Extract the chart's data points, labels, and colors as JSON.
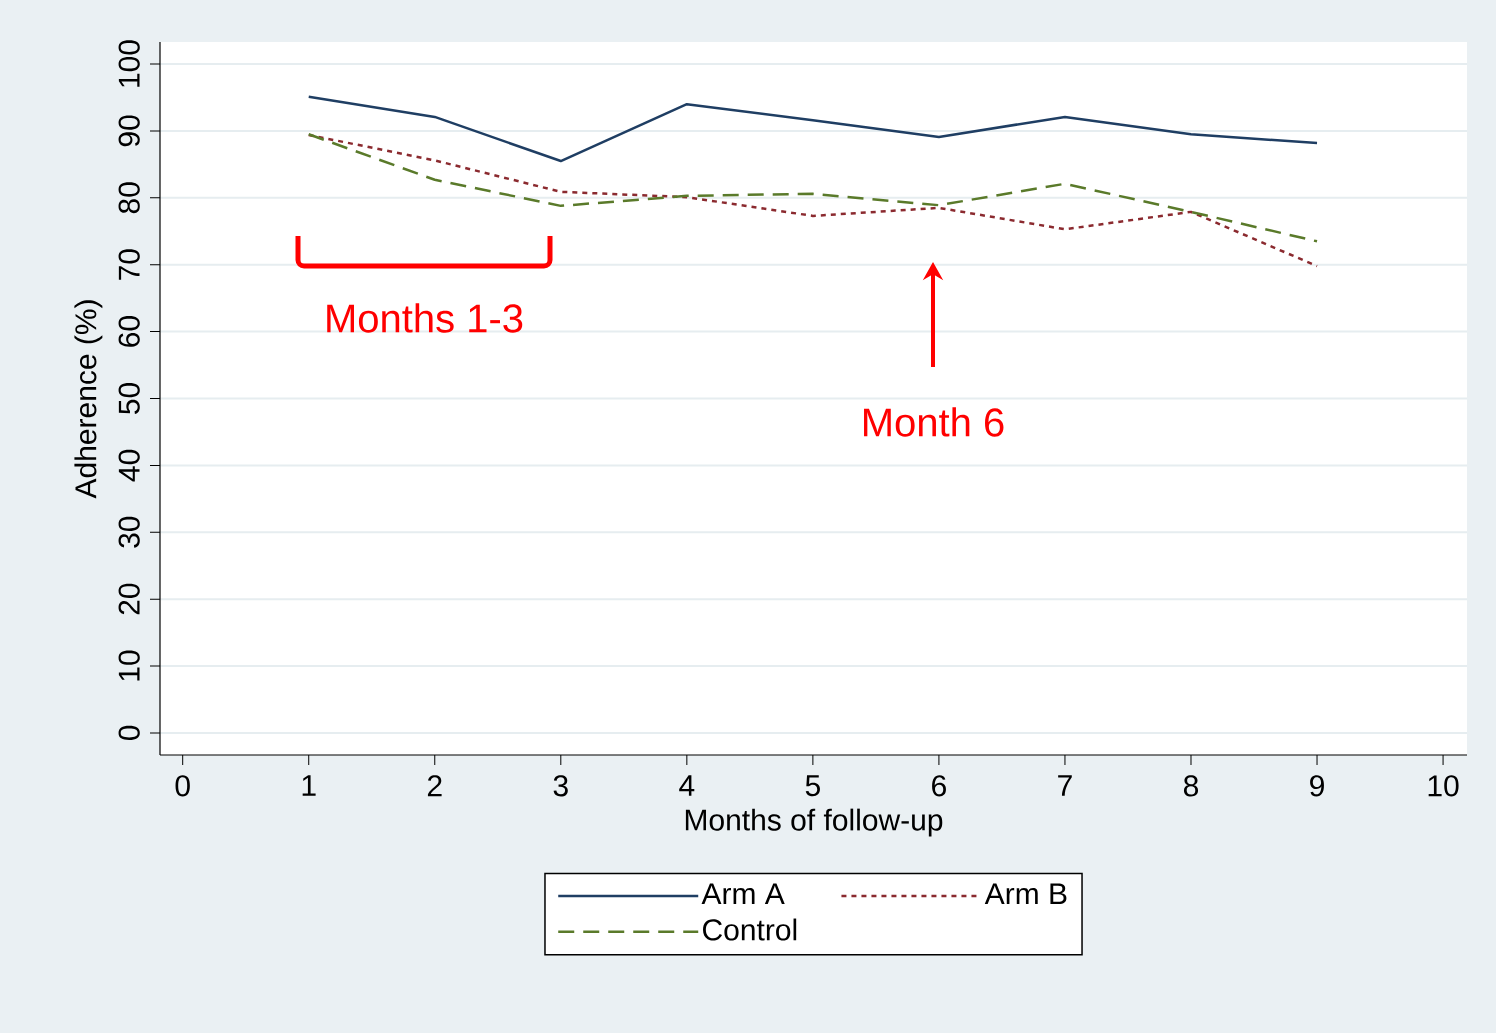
{
  "chart_data": {
    "type": "line",
    "xlabel": "Months of follow-up",
    "ylabel": "Adherence (%)",
    "x": [
      1,
      2,
      3,
      4,
      5,
      6,
      7,
      8,
      9
    ],
    "series": [
      {
        "name": "Arm A",
        "color": "#1f3e63",
        "line_style": "solid",
        "values": [
          95.1,
          92.1,
          85.5,
          94.0,
          91.6,
          89.1,
          92.1,
          89.5,
          88.2
        ]
      },
      {
        "name": "Arm B",
        "color": "#8b2a2f",
        "line_style": "dotted",
        "values": [
          89.4,
          85.6,
          80.9,
          80.1,
          77.3,
          78.5,
          75.3,
          77.9,
          69.8
        ]
      },
      {
        "name": "Control",
        "color": "#5a7a2a",
        "line_style": "dashed",
        "values": [
          89.5,
          82.7,
          78.8,
          80.3,
          80.6,
          78.9,
          82.1,
          77.9,
          73.5
        ]
      }
    ],
    "xlim": [
      -0.18,
      10.19
    ],
    "ylim": [
      -3.3,
      103.3
    ],
    "xticks": [
      0,
      1,
      2,
      3,
      4,
      5,
      6,
      7,
      8,
      9,
      10
    ],
    "yticks": [
      0,
      10,
      20,
      30,
      40,
      50,
      60,
      70,
      80,
      90,
      100
    ],
    "grid": "y",
    "legend": "bottom",
    "marker": "none",
    "annotations": [
      "Months 1-3",
      "Month 6"
    ]
  }
}
